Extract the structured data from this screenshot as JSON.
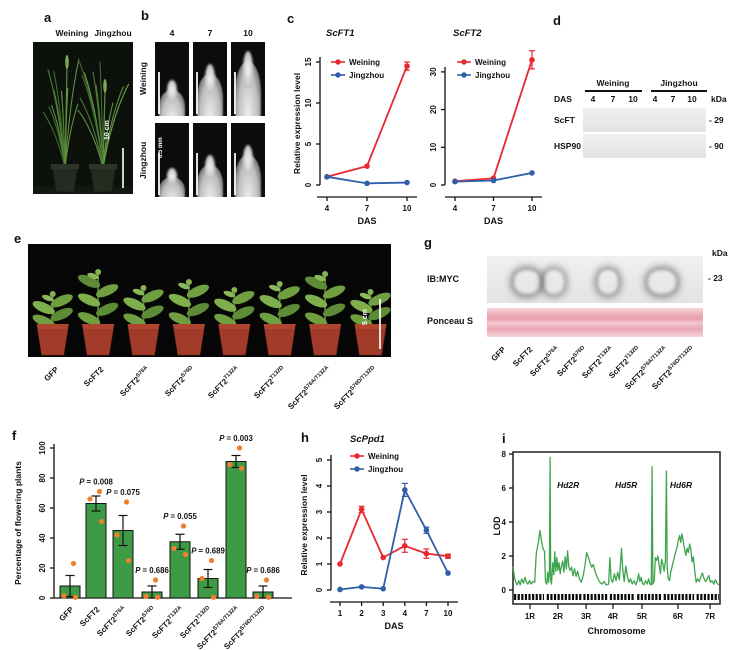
{
  "panel_letters": {
    "a": "a",
    "b": "b",
    "c": "c",
    "d": "d",
    "e": "e",
    "f": "f",
    "g": "g",
    "h": "h",
    "i": "i"
  },
  "colors": {
    "weining": "#e8282e",
    "jingzhou": "#2f5fa8",
    "bar_green": "#3d9b45",
    "dot_orange": "#f08030",
    "lod_green": "#3fa44e"
  },
  "panel_a": {
    "col_labels": [
      "Weining",
      "Jingzhou"
    ],
    "scale_bar": "10 cm"
  },
  "panel_b": {
    "col_headers": [
      "4",
      "7",
      "10"
    ],
    "row_labels": [
      "Weining",
      "Jingzhou"
    ],
    "scale_bar": "0.5 mm"
  },
  "panel_d": {
    "group_labels": [
      "Weining",
      "Jingzhou"
    ],
    "das_label": "DAS",
    "lane_numbers": [
      "4",
      "7",
      "10",
      "4",
      "7",
      "10"
    ],
    "kda": "kDa",
    "blots": [
      {
        "label": "ScFT",
        "marker": "- 29",
        "band_intensity": [
          0.12,
          1,
          1,
          0.05,
          0.07,
          0.05
        ]
      },
      {
        "label": "HSP90",
        "marker": "- 90",
        "band_intensity": [
          0.9,
          1,
          0.85,
          0.78,
          0.95,
          0.88
        ]
      }
    ]
  },
  "constructs": [
    {
      "base": "GFP",
      "sup": ""
    },
    {
      "base": "ScFT2",
      "sup": ""
    },
    {
      "base": "ScFT2",
      "sup": "S76A"
    },
    {
      "base": "ScFT2",
      "sup": "S76D"
    },
    {
      "base": "ScFT2",
      "sup": "T132A"
    },
    {
      "base": "ScFT2",
      "sup": "T132D"
    },
    {
      "base": "ScFT2",
      "sup": "S76A/T132A"
    },
    {
      "base": "ScFT2",
      "sup": "S76D/T132D"
    }
  ],
  "panel_e": {
    "scale_bar": "5 cm"
  },
  "panel_g": {
    "blot_label": "IB:MYC",
    "stain_label": "Ponceau S",
    "kda": "kDa",
    "marker": "- 23",
    "band_intensity": [
      0,
      1,
      0.85,
      0.3,
      0.95,
      0.35,
      1,
      0.4
    ],
    "band_width": [
      0,
      26,
      20,
      16,
      20,
      16,
      28,
      18
    ]
  },
  "chart_data": [
    {
      "id": "scft1",
      "type": "line",
      "title": "ScFT1",
      "xlabel": "DAS",
      "ylabel": "Relative expression level",
      "x": [
        "4",
        "7",
        "10"
      ],
      "yticks": [
        0,
        5,
        10,
        15
      ],
      "ylim": [
        0,
        16.5
      ],
      "legend": true,
      "series": [
        {
          "name": "Weining",
          "color_key": "weining",
          "values": [
            1.0,
            2.3,
            14.5
          ],
          "errors": [
            0.15,
            0.2,
            0.5
          ]
        },
        {
          "name": "Jingzhou",
          "color_key": "jingzhou",
          "values": [
            1.0,
            0.2,
            0.3
          ],
          "errors": [
            0.1,
            0.08,
            0.1
          ]
        }
      ]
    },
    {
      "id": "scft2",
      "type": "line",
      "title": "ScFT2",
      "xlabel": "DAS",
      "ylabel": "",
      "x": [
        "4",
        "7",
        "10"
      ],
      "yticks": [
        0,
        10,
        20,
        30
      ],
      "ylim": [
        0,
        37
      ],
      "legend": true,
      "series": [
        {
          "name": "Weining",
          "color_key": "weining",
          "values": [
            1.0,
            1.8,
            33.2
          ],
          "errors": [
            0.2,
            0.3,
            2.4
          ]
        },
        {
          "name": "Jingzhou",
          "color_key": "jingzhou",
          "values": [
            0.9,
            1.2,
            3.2
          ],
          "errors": [
            0.15,
            0.2,
            0.5
          ]
        }
      ]
    },
    {
      "id": "flowering",
      "type": "bar",
      "ylabel": "Percentage of flowering plants",
      "yticks": [
        0,
        20,
        40,
        60,
        80,
        100
      ],
      "ylim": [
        0,
        112
      ],
      "values": [
        8,
        63,
        45,
        4,
        37.5,
        13,
        91,
        4
      ],
      "errors": [
        7,
        5,
        10,
        4,
        5,
        6,
        4,
        4
      ],
      "p_prefix": "P",
      "p_equals": " = ",
      "p_values": [
        "",
        "0.008",
        "0.075",
        "0.686",
        "0.055",
        "0.689",
        "0.003",
        "0.686"
      ],
      "dots": [
        [
          23,
          1.5,
          0.5
        ],
        [
          71,
          66,
          51
        ],
        [
          64,
          42,
          25
        ],
        [
          12,
          1,
          0.5
        ],
        [
          48,
          33,
          29
        ],
        [
          25,
          13,
          0.5
        ],
        [
          100,
          89,
          86.5
        ],
        [
          12,
          1,
          0.5
        ]
      ]
    },
    {
      "id": "scppd1",
      "type": "line",
      "title": "ScPpd1",
      "xlabel": "DAS",
      "ylabel": "Relative expression level",
      "x": [
        "1",
        "2",
        "3",
        "4",
        "7",
        "10"
      ],
      "yticks": [
        0,
        1,
        2,
        3,
        4,
        5
      ],
      "ylim": [
        0,
        5.3
      ],
      "legend": true,
      "series": [
        {
          "name": "Weining",
          "color_key": "weining",
          "values": [
            1.0,
            3.1,
            1.25,
            1.7,
            1.4,
            1.3
          ],
          "errors": [
            0.06,
            0.12,
            0.06,
            0.25,
            0.18,
            0.08
          ]
        },
        {
          "name": "Jingzhou",
          "color_key": "jingzhou",
          "values": [
            0.02,
            0.12,
            0.05,
            3.85,
            2.3,
            0.65
          ],
          "errors": [
            0.02,
            0.04,
            0.02,
            0.25,
            0.12,
            0.06
          ]
        }
      ]
    },
    {
      "id": "lod",
      "type": "profile",
      "ylabel": "LOD",
      "xlabel": "Chromosome",
      "yticks": [
        0,
        2,
        4,
        6,
        8
      ],
      "ylim": [
        0,
        8.6
      ],
      "xticks": [
        {
          "label": "1R",
          "pos": 0.082
        },
        {
          "label": "2R",
          "pos": 0.217
        },
        {
          "label": "3R",
          "pos": 0.353
        },
        {
          "label": "4R",
          "pos": 0.483
        },
        {
          "label": "5R",
          "pos": 0.623
        },
        {
          "label": "6R",
          "pos": 0.797
        },
        {
          "label": "7R",
          "pos": 0.952
        }
      ],
      "annotations": [
        {
          "text": "Hd2R",
          "pos": 0.213,
          "lod": 6.0
        },
        {
          "text": "Hd5R",
          "pos": 0.493,
          "lod": 6.0
        },
        {
          "text": "Hd6R",
          "pos": 0.758,
          "lod": 6.0
        }
      ],
      "marker_bands": [
        [
          0.005,
          0.15
        ],
        [
          0.163,
          0.33
        ],
        [
          0.34,
          0.455
        ],
        [
          0.468,
          0.59
        ],
        [
          0.6,
          0.715
        ],
        [
          0.728,
          0.875
        ],
        [
          0.887,
          0.995
        ]
      ],
      "points": [
        [
          0.0,
          1.4
        ],
        [
          0.005,
          0.9
        ],
        [
          0.012,
          0.5
        ],
        [
          0.02,
          0.3
        ],
        [
          0.028,
          0.55
        ],
        [
          0.035,
          0.3
        ],
        [
          0.042,
          0.65
        ],
        [
          0.05,
          0.4
        ],
        [
          0.058,
          0.75
        ],
        [
          0.065,
          0.45
        ],
        [
          0.072,
          0.35
        ],
        [
          0.08,
          0.55
        ],
        [
          0.088,
          0.35
        ],
        [
          0.095,
          0.5
        ],
        [
          0.105,
          0.45
        ],
        [
          0.112,
          2.1
        ],
        [
          0.118,
          2.5
        ],
        [
          0.124,
          2.9
        ],
        [
          0.13,
          3.5
        ],
        [
          0.136,
          3.0
        ],
        [
          0.142,
          2.6
        ],
        [
          0.148,
          2.35
        ],
        [
          0.152,
          2.3
        ],
        [
          0.157,
          0.5
        ],
        [
          0.163,
          0.35
        ],
        [
          0.168,
          1.05
        ],
        [
          0.172,
          0.45
        ],
        [
          0.176,
          1.0
        ],
        [
          0.179,
          7.8
        ],
        [
          0.182,
          0.6
        ],
        [
          0.186,
          0.35
        ],
        [
          0.192,
          1.6
        ],
        [
          0.197,
          0.9
        ],
        [
          0.202,
          2.25
        ],
        [
          0.207,
          1.1
        ],
        [
          0.212,
          1.9
        ],
        [
          0.217,
          1.15
        ],
        [
          0.222,
          1.6
        ],
        [
          0.228,
          0.95
        ],
        [
          0.234,
          1.4
        ],
        [
          0.24,
          1.7
        ],
        [
          0.246,
          1.05
        ],
        [
          0.252,
          1.95
        ],
        [
          0.258,
          1.25
        ],
        [
          0.264,
          2.3
        ],
        [
          0.27,
          1.35
        ],
        [
          0.276,
          1.15
        ],
        [
          0.283,
          1.35
        ],
        [
          0.29,
          0.85
        ],
        [
          0.297,
          1.25
        ],
        [
          0.305,
          0.8
        ],
        [
          0.312,
          1.1
        ],
        [
          0.32,
          0.7
        ],
        [
          0.33,
          0.45
        ],
        [
          0.34,
          0.9
        ],
        [
          0.348,
          1.45
        ],
        [
          0.356,
          2.2
        ],
        [
          0.364,
          1.95
        ],
        [
          0.372,
          1.6
        ],
        [
          0.38,
          1.35
        ],
        [
          0.388,
          1.5
        ],
        [
          0.396,
          1.1
        ],
        [
          0.404,
          0.85
        ],
        [
          0.412,
          0.6
        ],
        [
          0.42,
          0.45
        ],
        [
          0.43,
          0.35
        ],
        [
          0.44,
          0.5
        ],
        [
          0.45,
          0.3
        ],
        [
          0.462,
          0.35
        ],
        [
          0.468,
          1.9
        ],
        [
          0.474,
          0.6
        ],
        [
          0.482,
          0.45
        ],
        [
          0.49,
          0.95
        ],
        [
          0.498,
          0.55
        ],
        [
          0.506,
          1.05
        ],
        [
          0.514,
          0.6
        ],
        [
          0.524,
          2.45
        ],
        [
          0.53,
          1.25
        ],
        [
          0.537,
          0.5
        ],
        [
          0.545,
          1.4
        ],
        [
          0.552,
          0.85
        ],
        [
          0.56,
          0.45
        ],
        [
          0.568,
          0.65
        ],
        [
          0.576,
          0.35
        ],
        [
          0.585,
          0.55
        ],
        [
          0.593,
          0.3
        ],
        [
          0.6,
          0.5
        ],
        [
          0.607,
          0.95
        ],
        [
          0.613,
          0.5
        ],
        [
          0.619,
          0.75
        ],
        [
          0.625,
          0.4
        ],
        [
          0.632,
          0.3
        ],
        [
          0.64,
          0.55
        ],
        [
          0.648,
          0.35
        ],
        [
          0.655,
          0.65
        ],
        [
          0.662,
          0.35
        ],
        [
          0.668,
          0.3
        ],
        [
          0.672,
          7.25
        ],
        [
          0.676,
          0.35
        ],
        [
          0.682,
          0.5
        ],
        [
          0.688,
          1.9
        ],
        [
          0.694,
          1.75
        ],
        [
          0.7,
          2.0
        ],
        [
          0.706,
          1.5
        ],
        [
          0.712,
          0.95
        ],
        [
          0.718,
          1.8
        ],
        [
          0.724,
          1.55
        ],
        [
          0.73,
          1.1
        ],
        [
          0.736,
          1.7
        ],
        [
          0.741,
          7.0
        ],
        [
          0.745,
          1.3
        ],
        [
          0.75,
          0.65
        ],
        [
          0.756,
          0.55
        ],
        [
          0.762,
          1.05
        ],
        [
          0.77,
          1.45
        ],
        [
          0.778,
          1.85
        ],
        [
          0.786,
          2.25
        ],
        [
          0.793,
          2.55
        ],
        [
          0.799,
          2.95
        ],
        [
          0.805,
          3.2
        ],
        [
          0.81,
          2.8
        ],
        [
          0.816,
          3.3
        ],
        [
          0.822,
          2.9
        ],
        [
          0.828,
          2.45
        ],
        [
          0.835,
          2.05
        ],
        [
          0.841,
          2.45
        ],
        [
          0.847,
          2.2
        ],
        [
          0.853,
          2.7
        ],
        [
          0.859,
          2.4
        ],
        [
          0.865,
          1.65
        ],
        [
          0.871,
          1.95
        ],
        [
          0.877,
          1.25
        ],
        [
          0.885,
          0.45
        ],
        [
          0.892,
          0.65
        ],
        [
          0.9,
          0.5
        ],
        [
          0.908,
          0.8
        ],
        [
          0.915,
          1.0
        ],
        [
          0.922,
          0.7
        ],
        [
          0.93,
          0.5
        ],
        [
          0.938,
          0.65
        ],
        [
          0.946,
          0.85
        ],
        [
          0.954,
          0.45
        ],
        [
          0.962,
          0.55
        ],
        [
          0.97,
          0.35
        ],
        [
          0.978,
          0.6
        ],
        [
          0.986,
          0.4
        ],
        [
          0.994,
          0.3
        ]
      ]
    }
  ]
}
